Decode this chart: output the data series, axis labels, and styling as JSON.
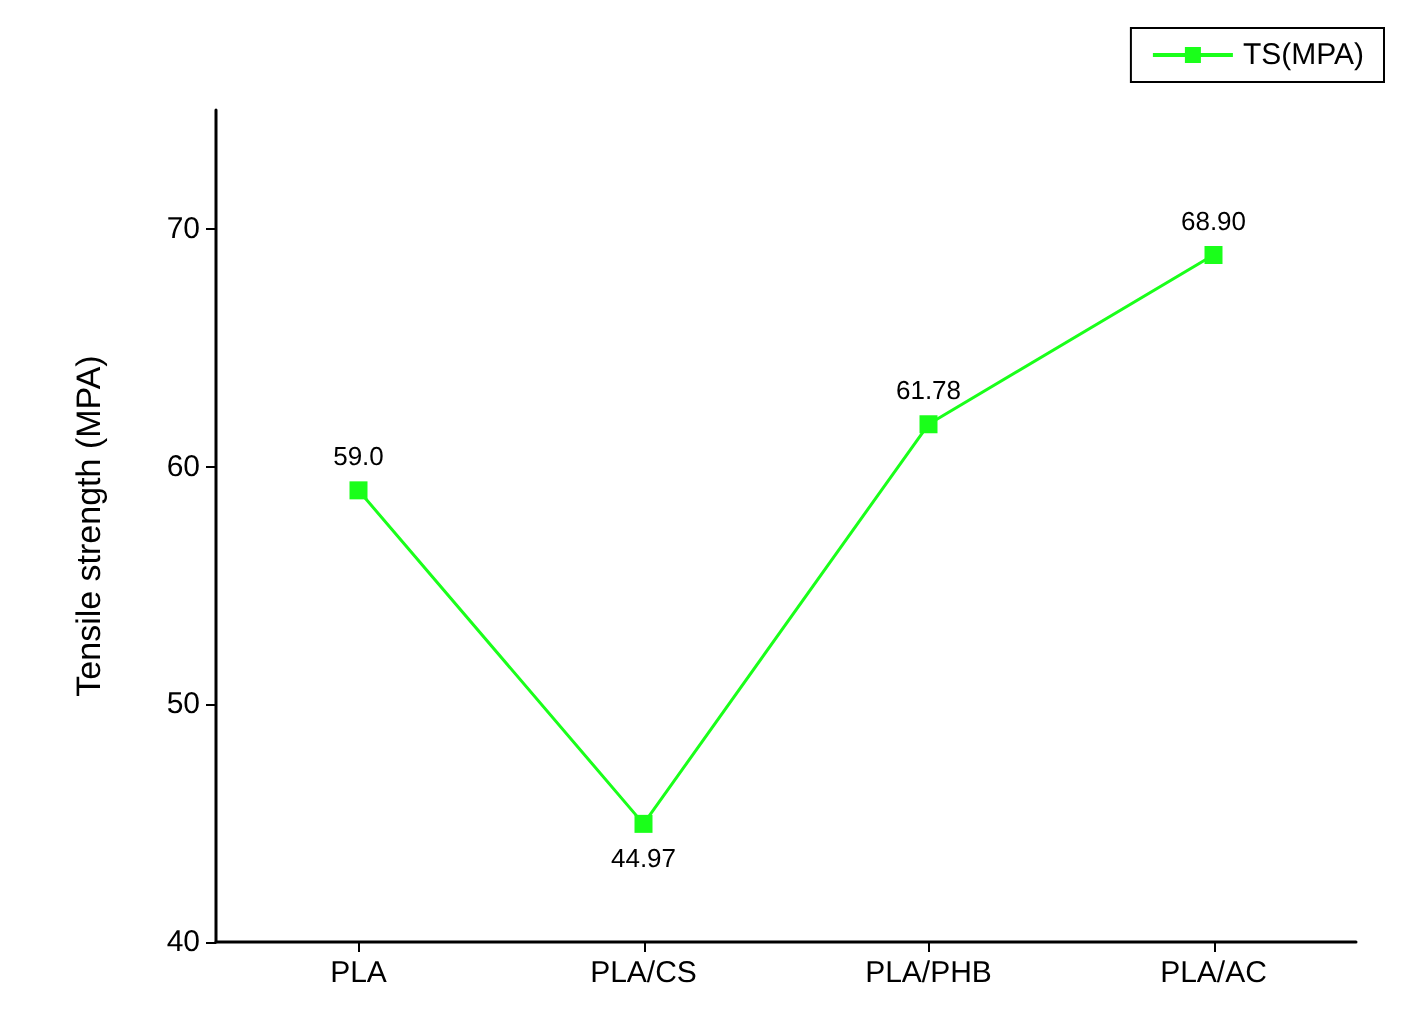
{
  "chart_data": {
    "type": "line",
    "ylabel": "Tensile strength (MPA)",
    "categories": [
      "PLA",
      "PLA/CS",
      "PLA/PHB",
      "PLA/AC"
    ],
    "series": [
      {
        "name": "TS(MPA)",
        "color": "#1aff1a",
        "values": [
          59.0,
          44.97,
          61.78,
          68.9
        ],
        "value_labels": [
          "59.0",
          "44.97",
          "61.78",
          "68.90"
        ]
      }
    ],
    "ylim": [
      40,
      75
    ],
    "yticks": [
      40,
      50,
      60,
      70
    ],
    "grid": false,
    "legend": "top right",
    "marker": "square",
    "line_style": "solid"
  }
}
